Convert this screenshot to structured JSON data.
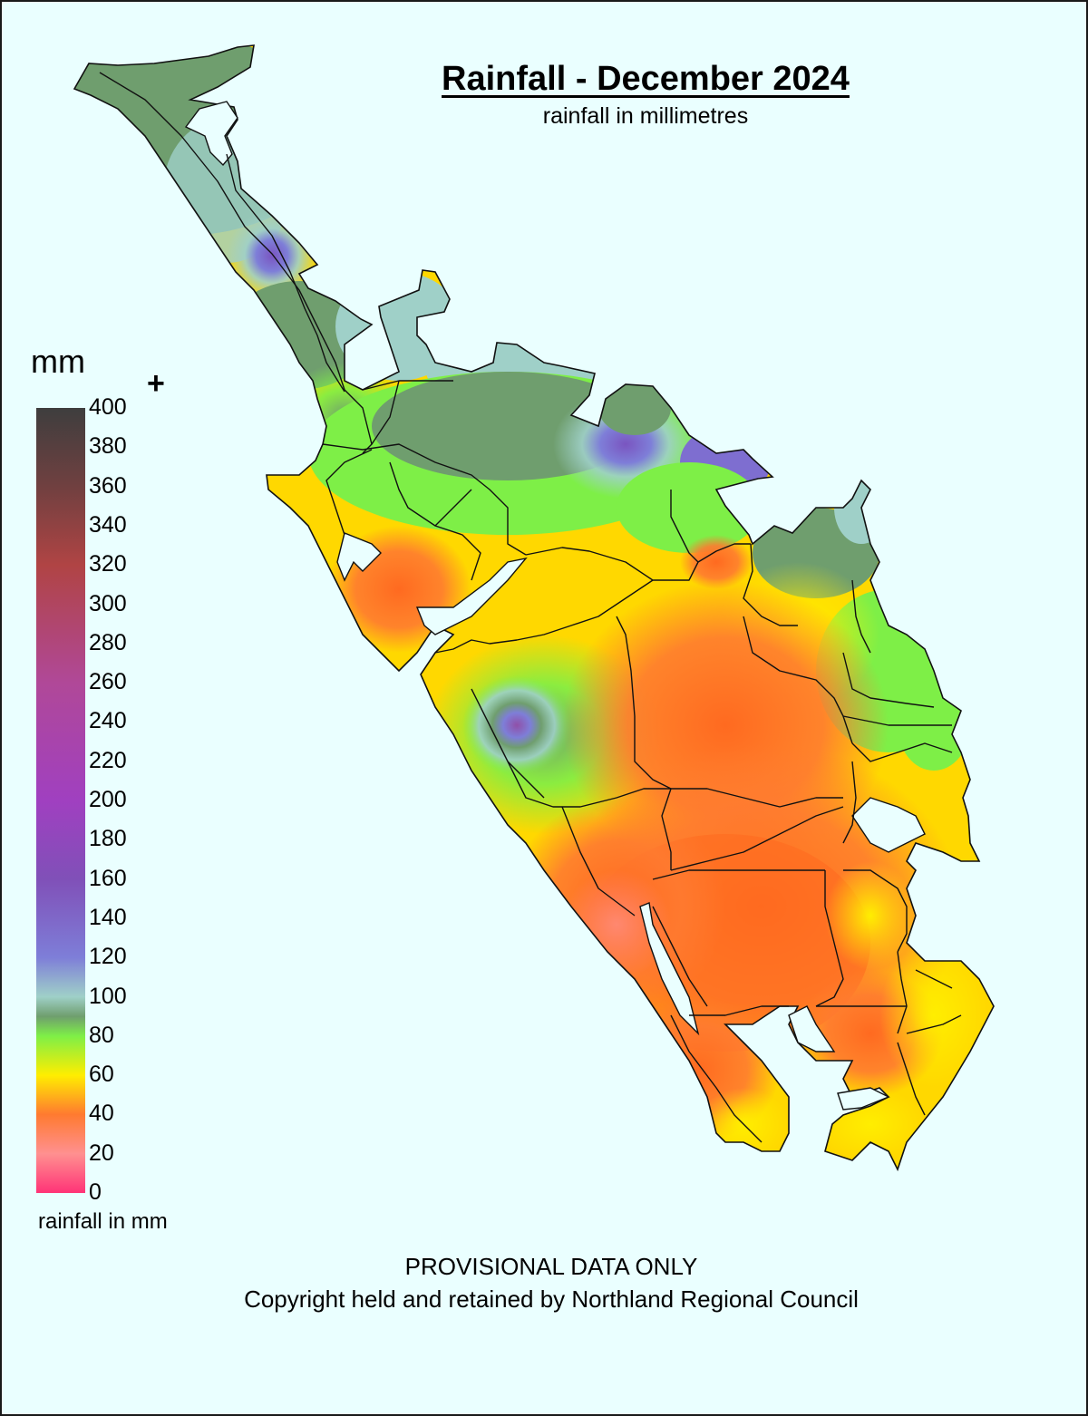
{
  "title": "Rainfall - December 2024",
  "subtitle": "rainfall in millimetres",
  "legend": {
    "unit": "mm",
    "overflow_marker": "+",
    "caption": "rainfall in mm",
    "ticks": [
      "400",
      "380",
      "360",
      "340",
      "320",
      "300",
      "280",
      "260",
      "240",
      "220",
      "200",
      "180",
      "160",
      "140",
      "120",
      "100",
      "80",
      "60",
      "40",
      "20",
      "0"
    ],
    "colors": {
      "0": "#ff3377",
      "20": "#ff9090",
      "40": "#ff7a30",
      "60": "#ffee00",
      "80": "#7eef47",
      "90": "#6f9e6e",
      "100": "#9fd0c8",
      "120": "#7e7ed8",
      "160": "#8050b8",
      "200": "#a040c0",
      "260": "#b04898",
      "320": "#b04444",
      "360": "#704040",
      "400": "#3e3e3e"
    }
  },
  "region_name": "Northland",
  "footer": {
    "provisional": "PROVISIONAL DATA ONLY",
    "copyright": "Copyright held and retained by Northland Regional Council"
  }
}
